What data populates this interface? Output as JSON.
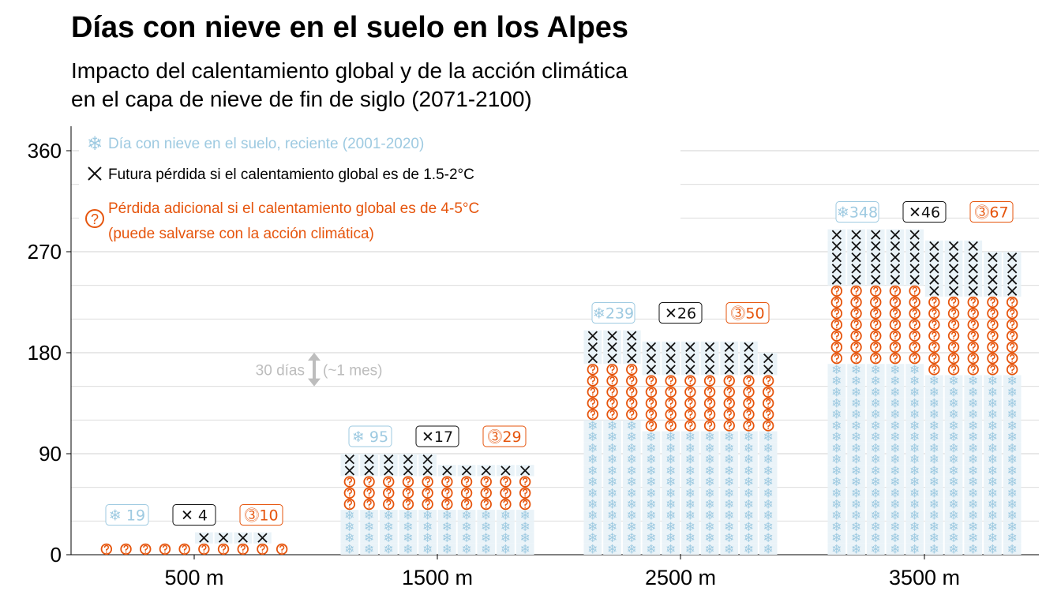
{
  "chart_data": {
    "type": "waffle-column",
    "title": "Días con nieve en el suelo en los Alpes",
    "subtitle": [
      "Impacto del calentamiento global y de la acción climática",
      "en el capa de nieve de fin de siglo (2071-2100)"
    ],
    "y_ticks": [
      0,
      90,
      180,
      270,
      360
    ],
    "ylim": [
      0,
      380
    ],
    "grid": true,
    "categories": [
      "500 m",
      "1500 m",
      "2500 m",
      "3500 m"
    ],
    "legend": {
      "position": "top-left",
      "entries": [
        {
          "key": "snow",
          "label": "Día con nieve en el suelo, reciente (2001-2020)"
        },
        {
          "key": "loss",
          "label": "Futura pérdida si el calentamiento global es de 1.5-2°C"
        },
        {
          "key": "extra",
          "label": "Pérdida adicional si el calentamiento global es de 4-5°C"
        },
        {
          "key": "extra_note",
          "label": "(puede salvarse con la acción climática)"
        }
      ]
    },
    "groups": [
      {
        "category": "500 m",
        "labels": {
          "snow": "❄ 19",
          "loss": "✕ 4",
          "extra": "⓷10"
        },
        "totals": {
          "snow": 19,
          "loss": 4,
          "extra": 10
        },
        "columns": [
          {
            "snow": 0,
            "extra": 1,
            "loss": 0
          },
          {
            "snow": 0,
            "extra": 1,
            "loss": 0
          },
          {
            "snow": 0,
            "extra": 1,
            "loss": 0
          },
          {
            "snow": 0,
            "extra": 1,
            "loss": 0
          },
          {
            "snow": 0,
            "extra": 1,
            "loss": 0
          },
          {
            "snow": 0,
            "extra": 1,
            "loss": 1
          },
          {
            "snow": 0,
            "extra": 1,
            "loss": 1
          },
          {
            "snow": 0,
            "extra": 1,
            "loss": 1
          },
          {
            "snow": 0,
            "extra": 1,
            "loss": 1
          },
          {
            "snow": 0,
            "extra": 1,
            "loss": 0
          }
        ]
      },
      {
        "category": "1500 m",
        "labels": {
          "snow": "❄ 95",
          "loss": "✕17",
          "extra": "⓷29"
        },
        "totals": {
          "snow": 95,
          "loss": 17,
          "extra": 29
        },
        "columns": [
          {
            "snow": 4,
            "extra": 3,
            "loss": 2
          },
          {
            "snow": 4,
            "extra": 3,
            "loss": 2
          },
          {
            "snow": 4,
            "extra": 3,
            "loss": 2
          },
          {
            "snow": 4,
            "extra": 3,
            "loss": 2
          },
          {
            "snow": 4,
            "extra": 3,
            "loss": 2
          },
          {
            "snow": 4,
            "extra": 3,
            "loss": 1
          },
          {
            "snow": 4,
            "extra": 3,
            "loss": 1
          },
          {
            "snow": 4,
            "extra": 3,
            "loss": 1
          },
          {
            "snow": 4,
            "extra": 3,
            "loss": 1
          },
          {
            "snow": 4,
            "extra": 3,
            "loss": 1
          }
        ]
      },
      {
        "category": "2500 m",
        "labels": {
          "snow": "❄239",
          "loss": "✕26",
          "extra": "⓷50"
        },
        "totals": {
          "snow": 239,
          "loss": 26,
          "extra": 50
        },
        "columns": [
          {
            "snow": 12,
            "extra": 5,
            "loss": 3
          },
          {
            "snow": 12,
            "extra": 5,
            "loss": 3
          },
          {
            "snow": 12,
            "extra": 5,
            "loss": 3
          },
          {
            "snow": 11,
            "extra": 5,
            "loss": 3
          },
          {
            "snow": 11,
            "extra": 5,
            "loss": 3
          },
          {
            "snow": 11,
            "extra": 5,
            "loss": 3
          },
          {
            "snow": 11,
            "extra": 5,
            "loss": 3
          },
          {
            "snow": 11,
            "extra": 5,
            "loss": 3
          },
          {
            "snow": 11,
            "extra": 5,
            "loss": 3
          },
          {
            "snow": 11,
            "extra": 5,
            "loss": 2
          }
        ]
      },
      {
        "category": "3500 m",
        "labels": {
          "snow": "❄348",
          "loss": "✕46",
          "extra": "⓷67"
        },
        "totals": {
          "snow": 348,
          "loss": 46,
          "extra": 67
        },
        "columns": [
          {
            "snow": 17,
            "extra": 7,
            "loss": 5
          },
          {
            "snow": 17,
            "extra": 7,
            "loss": 5
          },
          {
            "snow": 17,
            "extra": 7,
            "loss": 5
          },
          {
            "snow": 17,
            "extra": 7,
            "loss": 5
          },
          {
            "snow": 17,
            "extra": 7,
            "loss": 5
          },
          {
            "snow": 16,
            "extra": 7,
            "loss": 5
          },
          {
            "snow": 16,
            "extra": 7,
            "loss": 5
          },
          {
            "snow": 16,
            "extra": 7,
            "loss": 5
          },
          {
            "snow": 16,
            "extra": 7,
            "loss": 4
          },
          {
            "snow": 16,
            "extra": 7,
            "loss": 4
          }
        ]
      }
    ],
    "annotation": {
      "left": "30 días",
      "right": "(~1 mes)",
      "span_days": 30
    }
  },
  "colors": {
    "snow": "#9ecae1",
    "loss": "#111111",
    "extra": "#e6550d",
    "grid": "#d9d9d9",
    "annotation": "#bdbdbd",
    "snow_cell_bg": "#eaf3f8"
  }
}
